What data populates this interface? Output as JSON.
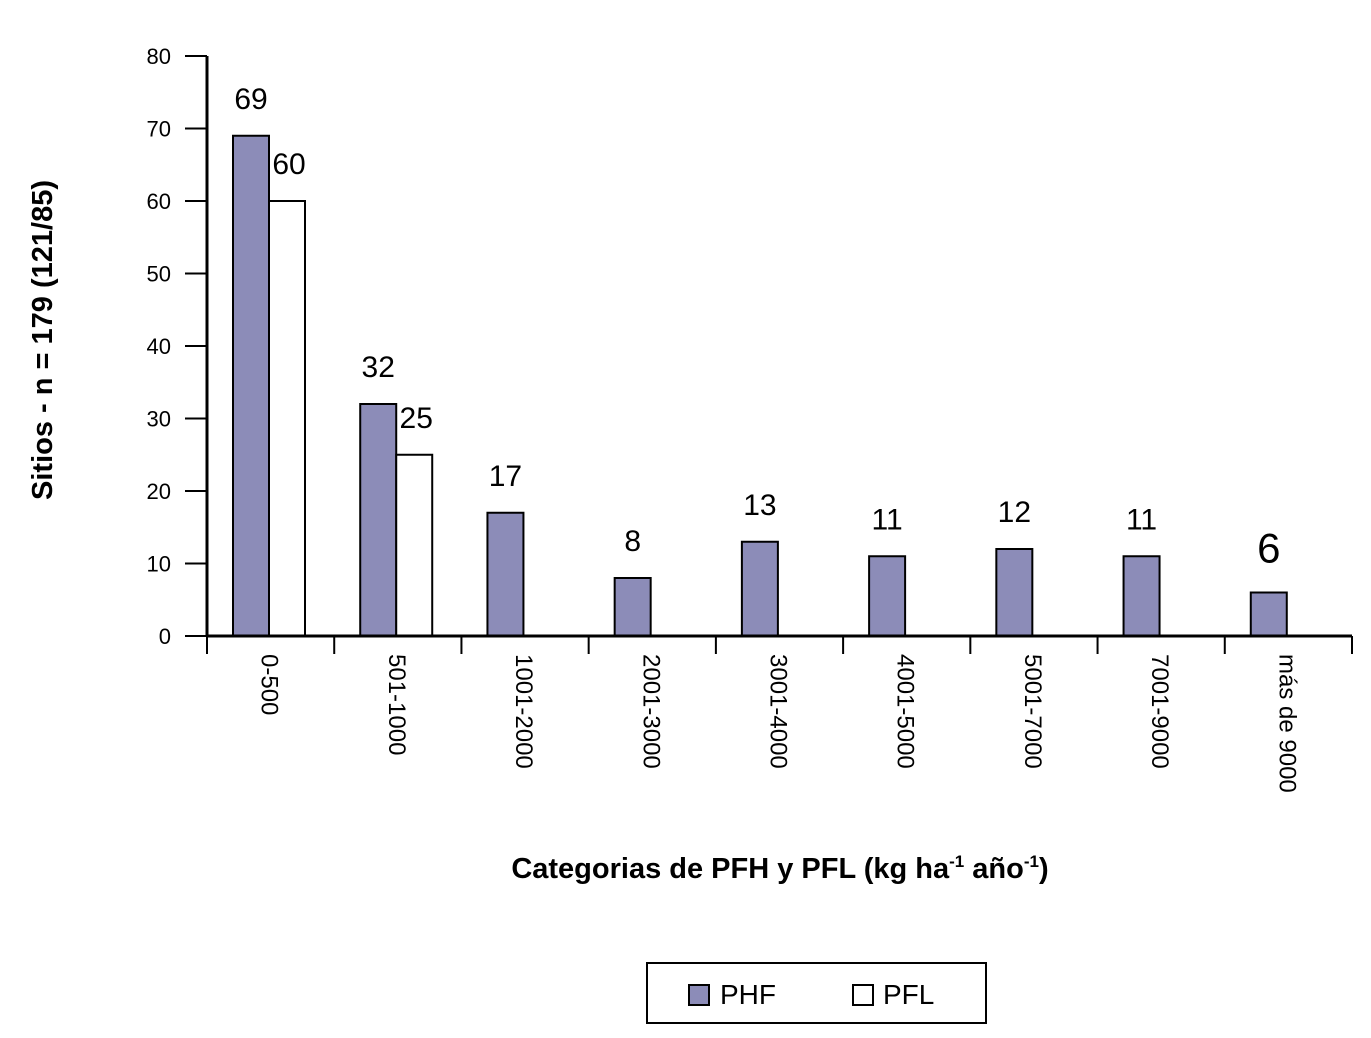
{
  "chart_data": {
    "type": "bar",
    "categories": [
      "0-500",
      "501-1000",
      "1001-2000",
      "2001-3000",
      "3001-4000",
      "4001-5000",
      "5001-7000",
      "7001-9000",
      "más de 9000"
    ],
    "series": [
      {
        "name": "PHF",
        "values": [
          69,
          32,
          17,
          8,
          13,
          11,
          12,
          11,
          6
        ],
        "color": "#8c8cb8"
      },
      {
        "name": "PFL",
        "values": [
          60,
          25,
          null,
          null,
          null,
          null,
          null,
          null,
          null
        ],
        "color": "#ffffff"
      }
    ],
    "data_labels": {
      "PHF": [
        "69",
        "32",
        "17",
        "8",
        "13",
        "11",
        "12",
        "11",
        "6"
      ],
      "PFL": [
        "60",
        "25",
        "",
        "",
        "",
        "",
        "",
        "",
        ""
      ]
    },
    "ylabel": "Sitios - n =  179  (121/85)",
    "xlabel": {
      "main": "Categorias de PFH y PFL  (kg ha",
      "sup1": "-1",
      "mid": " año",
      "sup2": "-1",
      "end": ")"
    },
    "ylim": [
      0,
      80
    ],
    "yticks": [
      "0",
      "10",
      "20",
      "30",
      "40",
      "50",
      "60",
      "70",
      "80"
    ],
    "grid": false,
    "legend_position": "bottom-center"
  }
}
